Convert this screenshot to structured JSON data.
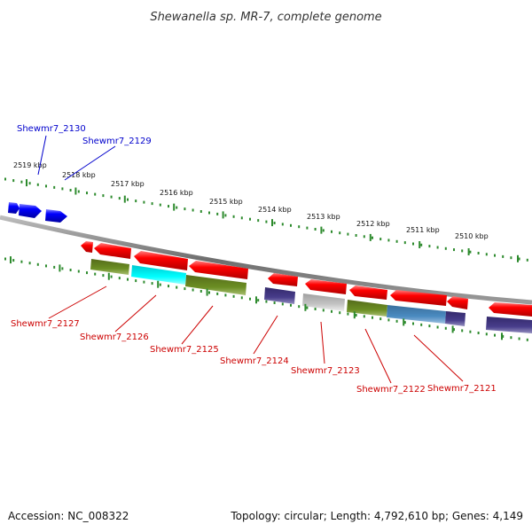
{
  "title": "Shewanella sp. MR-7, complete genome",
  "footer": {
    "accession": "Accession: NC_008322",
    "topology": "Topology: circular; Length: 4,792,610 bp; Genes: 4,149"
  },
  "ruler_ticks": [
    "2519 kbp",
    "2518 kbp",
    "2517 kbp",
    "2516 kbp",
    "2515 kbp",
    "2514 kbp",
    "2513 kbp",
    "2512 kbp",
    "2511 kbp",
    "2510 kbp"
  ],
  "gene_labels_top": [
    "Shewmr7_2130",
    "Shewmr7_2129"
  ],
  "gene_labels_bottom": [
    "Shewmr7_2127",
    "Shewmr7_2126",
    "Shewmr7_2125",
    "Shewmr7_2124",
    "Shewmr7_2123",
    "Shewmr7_2122",
    "Shewmr7_2121"
  ],
  "colors": {
    "forward_strand": "#0000ee",
    "reverse_strand": "#ee0000",
    "backbone": "#8c8c8c",
    "tick": "#2e8b2e",
    "label_top": "#0000cc",
    "label_bottom": "#cc0000",
    "olive": "#6b8e23",
    "cyan": "#00e5ee",
    "slate": "#483d8b",
    "silver": "#b8b8b8",
    "steel": "#4682b4"
  }
}
